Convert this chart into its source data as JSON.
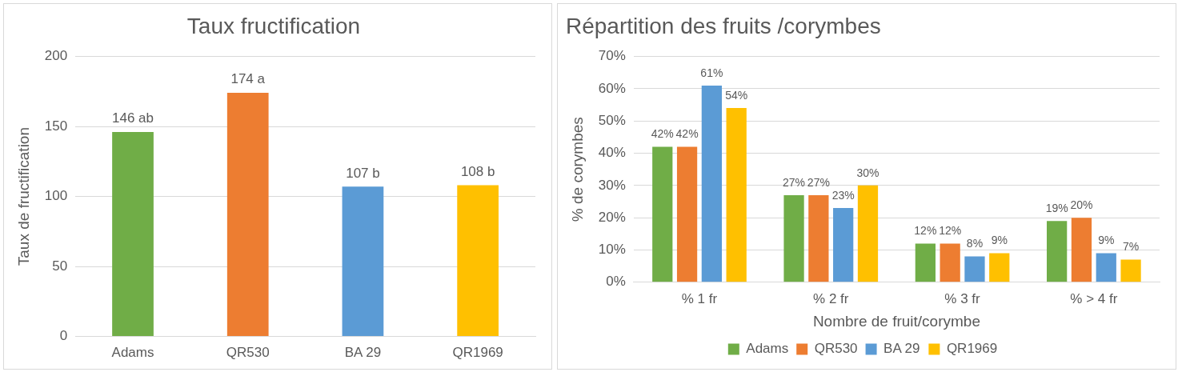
{
  "chart_data": [
    {
      "type": "bar",
      "title": "Taux fructification",
      "ylabel": "Taux de fructification",
      "categories": [
        "Adams",
        "QR530",
        "BA 29",
        "QR1969"
      ],
      "values": [
        146,
        174,
        107,
        108
      ],
      "value_labels": [
        "146 ab",
        "174 a",
        "107 b",
        "108 b"
      ],
      "colors": [
        "#70ad47",
        "#ed7d31",
        "#5b9bd5",
        "#ffc000"
      ],
      "ylim": [
        0,
        200
      ],
      "yticks": [
        0,
        50,
        100,
        150,
        200
      ],
      "grid": "y",
      "legend": false
    },
    {
      "type": "bar",
      "title": "Répartition des fruits /corymbes",
      "xlabel": "Nombre de fruit/corymbe",
      "ylabel": "% de corymbes",
      "categories": [
        "% 1 fr",
        "% 2 fr",
        "% 3 fr",
        "% > 4 fr"
      ],
      "series": [
        {
          "name": "Adams",
          "color": "#70ad47",
          "values": [
            42,
            27,
            12,
            19
          ],
          "value_labels": [
            "42%",
            "27%",
            "12%",
            "19%"
          ]
        },
        {
          "name": "QR530",
          "color": "#ed7d31",
          "values": [
            42,
            27,
            12,
            20
          ],
          "value_labels": [
            "42%",
            "27%",
            "12%",
            "20%"
          ]
        },
        {
          "name": "BA 29",
          "color": "#5b9bd5",
          "values": [
            61,
            23,
            8,
            9
          ],
          "value_labels": [
            "61%",
            "23%",
            "8%",
            "9%"
          ]
        },
        {
          "name": "QR1969",
          "color": "#ffc000",
          "values": [
            54,
            30,
            9,
            7
          ],
          "value_labels": [
            "54%",
            "30%",
            "9%",
            "7%"
          ]
        }
      ],
      "ylim": [
        0,
        70
      ],
      "yticks": [
        {
          "value": 0,
          "label": "0%"
        },
        {
          "value": 10,
          "label": "10%"
        },
        {
          "value": 20,
          "label": "20%"
        },
        {
          "value": 30,
          "label": "30%"
        },
        {
          "value": 40,
          "label": "40%"
        },
        {
          "value": 50,
          "label": "50%"
        },
        {
          "value": 60,
          "label": "60%"
        },
        {
          "value": 70,
          "label": "70%"
        }
      ],
      "grid": "y",
      "legend": "bottom"
    }
  ]
}
